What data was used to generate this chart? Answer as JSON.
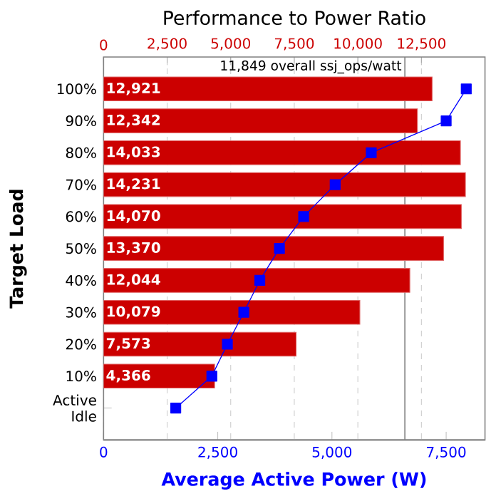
{
  "chart_data": {
    "type": "bar",
    "orientation": "horizontal",
    "x2label": "Performance to Power Ratio",
    "xlabel": "Average Active Power (W)",
    "ylabel": "Target Load",
    "categories": [
      "100%",
      "90%",
      "80%",
      "70%",
      "60%",
      "50%",
      "40%",
      "30%",
      "20%",
      "10%",
      "Active Idle"
    ],
    "x2lim": [
      0,
      15000
    ],
    "x2ticks": [
      0,
      {
        "value": 2500,
        "label": "2,500"
      },
      {
        "value": 5000,
        "label": "5,000"
      },
      {
        "value": 7500,
        "label": "7,500"
      },
      {
        "value": 10000,
        "label": "10,000"
      },
      {
        "value": 12500,
        "label": "12,500"
      }
    ],
    "xlim": [
      0,
      8350
    ],
    "xticks": [
      0,
      {
        "value": 2500,
        "label": "2,500"
      },
      {
        "value": 5000,
        "label": "5,000"
      },
      {
        "value": 7500,
        "label": "7,500"
      }
    ],
    "grid": "x",
    "series": [
      {
        "axis": "x2",
        "color": "#cc0000",
        "values": [
          12921,
          12342,
          14033,
          14231,
          14070,
          13370,
          12044,
          10079,
          7573,
          4366,
          null
        ],
        "value_labels": [
          "12,921",
          "12,342",
          "14,033",
          "14,231",
          "14,070",
          "13,370",
          "12,044",
          "10,079",
          "7,573",
          "4,366",
          null
        ]
      },
      {
        "type": "line",
        "color": "#0000ff",
        "marker": "square",
        "values": [
          7940,
          7500,
          5860,
          5070,
          4380,
          3850,
          3420,
          3070,
          2710,
          2370,
          1580
        ]
      }
    ],
    "ref_lines": [
      {
        "axis": "x2",
        "value": 11849,
        "label": "11,849 overall ssj_ops/watt",
        "color": "#808080"
      }
    ]
  }
}
